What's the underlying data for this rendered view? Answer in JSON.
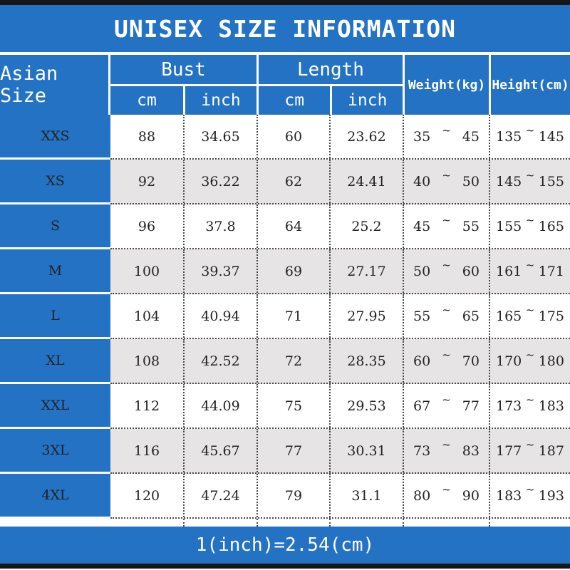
{
  "title": "UNISEX SIZE INFORMATION",
  "colors": {
    "accent_blue": "#2472c4",
    "row_alt_gray": "#e6e4e5",
    "bar_black": "#161616",
    "text_dark": "#232323",
    "header_text": "#ffffff"
  },
  "table": {
    "header": {
      "size_label": "Asian Size",
      "bust": {
        "label": "Bust",
        "sub": [
          "cm",
          "inch"
        ]
      },
      "length": {
        "label": "Length",
        "sub": [
          "cm",
          "inch"
        ]
      },
      "weight_label": "Weight(kg)",
      "height_label": "Height(cm)"
    },
    "range_separator": "~"
  },
  "chart_data": {
    "type": "table",
    "title": "UNISEX SIZE INFORMATION",
    "columns": [
      "Asian Size",
      "Bust cm",
      "Bust inch",
      "Length cm",
      "Length inch",
      "Weight(kg) min",
      "Weight(kg) max",
      "Height(cm) min",
      "Height(cm) max"
    ],
    "rows": [
      {
        "size": "XXS",
        "bust_cm": "88",
        "bust_inch": "34.65",
        "length_cm": "60",
        "length_inch": "23.62",
        "weight_min": "35",
        "weight_max": "45",
        "height_min": "135",
        "height_max": "145"
      },
      {
        "size": "XS",
        "bust_cm": "92",
        "bust_inch": "36.22",
        "length_cm": "62",
        "length_inch": "24.41",
        "weight_min": "40",
        "weight_max": "50",
        "height_min": "145",
        "height_max": "155"
      },
      {
        "size": "S",
        "bust_cm": "96",
        "bust_inch": "37.8",
        "length_cm": "64",
        "length_inch": "25.2",
        "weight_min": "45",
        "weight_max": "55",
        "height_min": "155",
        "height_max": "165"
      },
      {
        "size": "M",
        "bust_cm": "100",
        "bust_inch": "39.37",
        "length_cm": "69",
        "length_inch": "27.17",
        "weight_min": "50",
        "weight_max": "60",
        "height_min": "161",
        "height_max": "171"
      },
      {
        "size": "L",
        "bust_cm": "104",
        "bust_inch": "40.94",
        "length_cm": "71",
        "length_inch": "27.95",
        "weight_min": "55",
        "weight_max": "65",
        "height_min": "165",
        "height_max": "175"
      },
      {
        "size": "XL",
        "bust_cm": "108",
        "bust_inch": "42.52",
        "length_cm": "72",
        "length_inch": "28.35",
        "weight_min": "60",
        "weight_max": "70",
        "height_min": "170",
        "height_max": "180"
      },
      {
        "size": "XXL",
        "bust_cm": "112",
        "bust_inch": "44.09",
        "length_cm": "75",
        "length_inch": "29.53",
        "weight_min": "67",
        "weight_max": "77",
        "height_min": "173",
        "height_max": "183"
      },
      {
        "size": "3XL",
        "bust_cm": "116",
        "bust_inch": "45.67",
        "length_cm": "77",
        "length_inch": "30.31",
        "weight_min": "73",
        "weight_max": "83",
        "height_min": "177",
        "height_max": "187"
      },
      {
        "size": "4XL",
        "bust_cm": "120",
        "bust_inch": "47.24",
        "length_cm": "79",
        "length_inch": "31.1",
        "weight_min": "80",
        "weight_max": "90",
        "height_min": "183",
        "height_max": "193"
      }
    ],
    "note": "1(inch)=2.54(cm)"
  }
}
